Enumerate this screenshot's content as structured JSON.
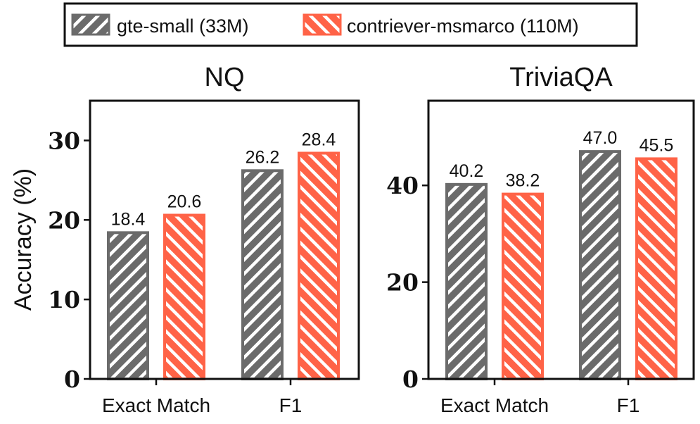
{
  "chart_data": {
    "type": "bar",
    "legend": {
      "placement": "top-center",
      "entries": [
        {
          "name": "gte-small (33M)",
          "color": "#6b6b6b",
          "hatch": "forward-diagonal"
        },
        {
          "name": "contriever-msmarco (110M)",
          "color": "#ff6347",
          "hatch": "back-diagonal"
        }
      ]
    },
    "ylabel": "Accuracy (%)",
    "panels": [
      {
        "title": "NQ",
        "categories": [
          "Exact Match",
          "F1"
        ],
        "ylim": [
          0,
          35
        ],
        "yticks": [
          0,
          10,
          20,
          30
        ],
        "series": [
          {
            "name": "gte-small (33M)",
            "values": [
              18.4,
              26.2
            ],
            "labels": [
              "18.4",
              "26.2"
            ]
          },
          {
            "name": "contriever-msmarco (110M)",
            "values": [
              20.6,
              28.4
            ],
            "labels": [
              "20.6",
              "28.4"
            ]
          }
        ]
      },
      {
        "title": "TriviaQA",
        "categories": [
          "Exact Match",
          "F1"
        ],
        "ylim": [
          0,
          57.5
        ],
        "yticks": [
          0,
          20,
          40
        ],
        "series": [
          {
            "name": "gte-small (33M)",
            "values": [
              40.2,
              47.0
            ],
            "labels": [
              "40.2",
              "47.0"
            ]
          },
          {
            "name": "contriever-msmarco (110M)",
            "values": [
              38.2,
              45.5
            ],
            "labels": [
              "38.2",
              "45.5"
            ]
          }
        ]
      }
    ]
  }
}
